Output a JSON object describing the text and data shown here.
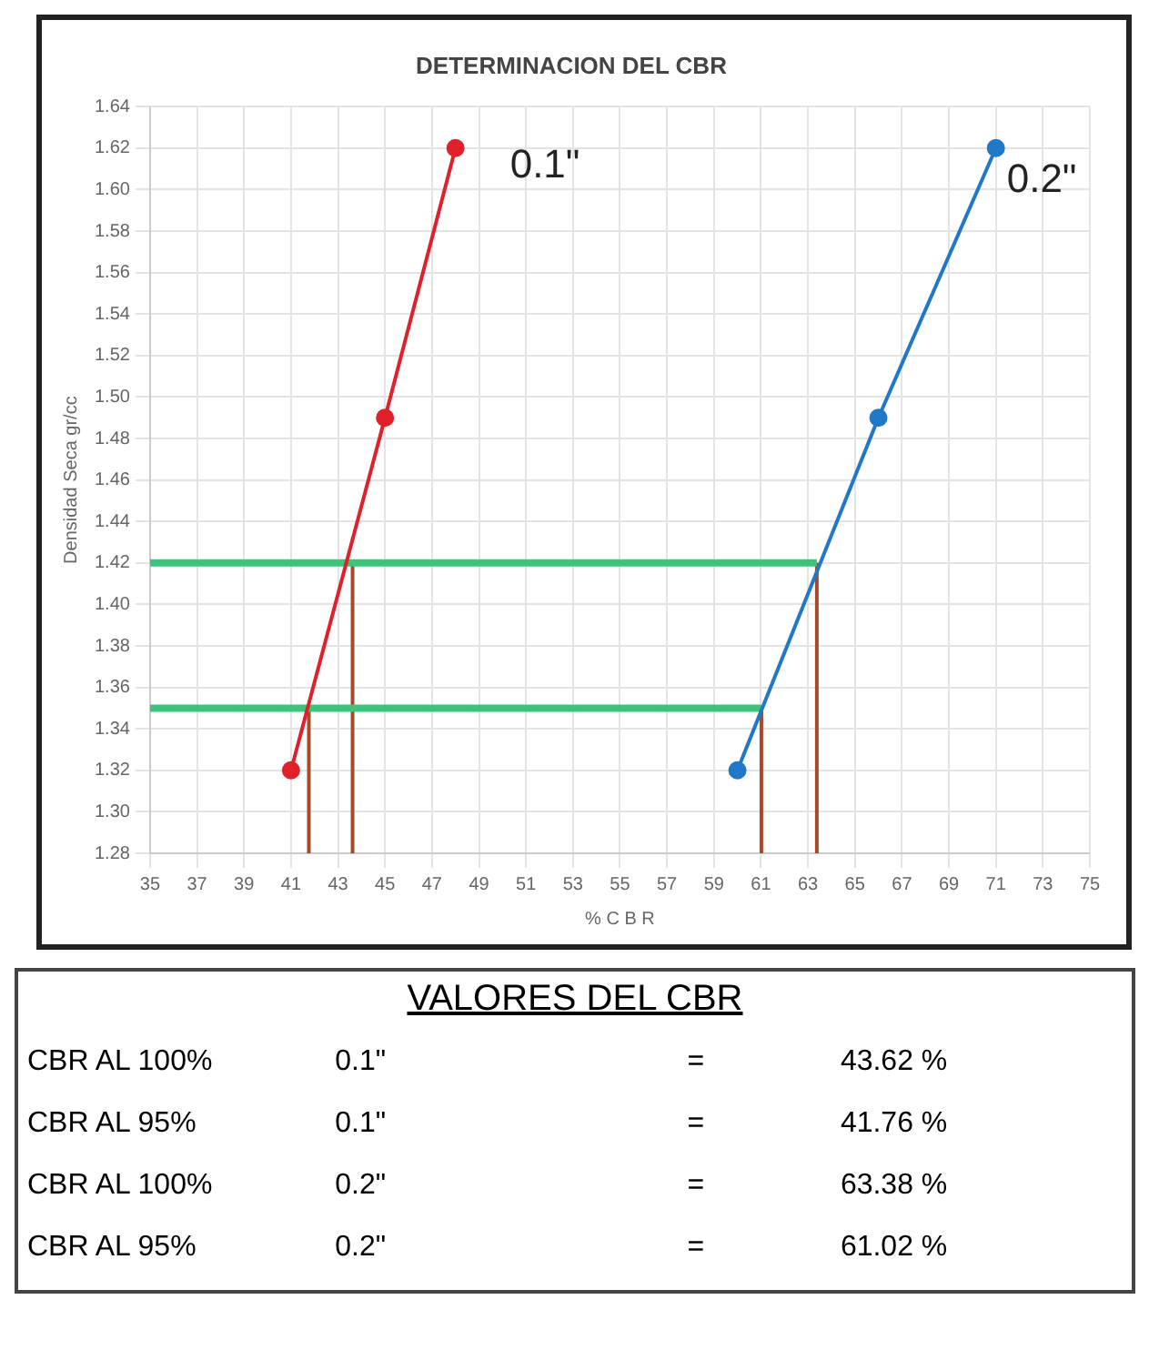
{
  "chart_data": {
    "type": "line",
    "title": "DETERMINACION DEL CBR",
    "xlabel": "% C B R",
    "ylabel": "Densidad Seca gr/cc",
    "xlim": [
      35,
      75
    ],
    "xticks": [
      35,
      37,
      39,
      41,
      43,
      45,
      47,
      49,
      51,
      53,
      55,
      57,
      59,
      61,
      63,
      65,
      67,
      69,
      71,
      73,
      75
    ],
    "ylim": [
      1.28,
      1.64
    ],
    "yticks": [
      1.28,
      {
        "value": 1.3,
        "label": "1.30"
      },
      1.32,
      1.34,
      1.36,
      1.38,
      {
        "value": 1.4,
        "label": "1.40"
      },
      1.42,
      1.44,
      1.46,
      1.48,
      {
        "value": 1.5,
        "label": "1.50"
      },
      1.52,
      1.54,
      1.56,
      1.58,
      {
        "value": 1.6,
        "label": "1.60"
      },
      1.62,
      1.64
    ],
    "grid": true,
    "legend": false,
    "marker": "circle",
    "line_style": "solid",
    "series": [
      {
        "name": "0.1\"",
        "color": "#e0202a",
        "x": [
          41,
          45,
          48
        ],
        "values": [
          1.32,
          1.49,
          1.62
        ]
      },
      {
        "name": "0.2\"",
        "color": "#1f78c8",
        "x": [
          60,
          66,
          71
        ],
        "values": [
          1.32,
          1.49,
          1.62
        ]
      },
      {
        "color": "#3cc47a",
        "marker": "none",
        "x": [
          35,
          63.38
        ],
        "values": [
          1.42,
          1.42
        ]
      },
      {
        "color": "#3cc47a",
        "marker": "none",
        "x": [
          35,
          61.02
        ],
        "values": [
          1.35,
          1.35
        ]
      },
      {
        "color": "#a8492a",
        "marker": "none",
        "x": [
          41.76,
          41.76
        ],
        "values": [
          1.28,
          1.35
        ]
      },
      {
        "color": "#a8492a",
        "marker": "none",
        "x": [
          43.62,
          43.62
        ],
        "values": [
          1.28,
          1.42
        ]
      },
      {
        "color": "#a8492a",
        "marker": "none",
        "x": [
          61.02,
          61.02
        ],
        "values": [
          1.28,
          1.35
        ]
      },
      {
        "color": "#a8492a",
        "marker": "none",
        "x": [
          63.38,
          63.38
        ],
        "values": [
          1.28,
          1.42
        ]
      }
    ],
    "annotations": [
      "VALORES DEL CBR",
      "CBR AL 100%",
      "0.1\"",
      "=",
      "43.62 %",
      "CBR AL 95%",
      "0.1\"",
      "=",
      "41.76 %",
      "CBR AL 100%",
      "0.2\"",
      "=",
      "63.38 %",
      "CBR AL 95%",
      "0.2\"",
      "=",
      "61.02 %"
    ]
  }
}
